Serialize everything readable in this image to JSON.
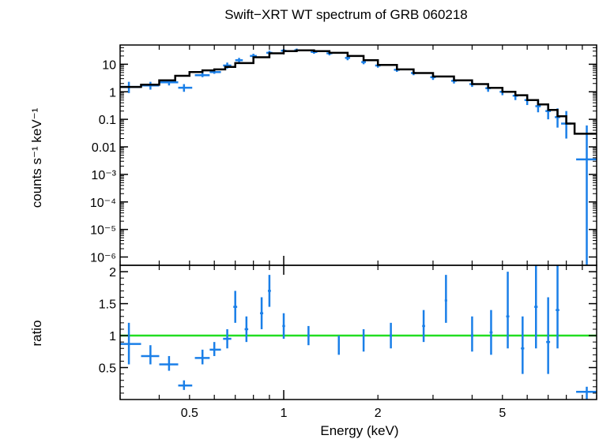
{
  "chart_data": [
    {
      "panel": "spectrum",
      "type": "scatter",
      "title": "Swift−XRT WT spectrum of GRB 060218",
      "xlabel": "Energy (keV)",
      "ylabel": "counts s⁻¹ keV⁻¹",
      "xscale": "log",
      "yscale": "log",
      "xlim": [
        0.3,
        10
      ],
      "ylim": [
        5e-07,
        50
      ],
      "y_tick_labels": [
        {
          "value": 10,
          "label": "10"
        },
        {
          "value": 1,
          "label": "1"
        },
        {
          "value": 0.1,
          "label": "0.1"
        },
        {
          "value": 0.01,
          "label": "0.01"
        },
        {
          "value": 0.001,
          "label": "10⁻³"
        },
        {
          "value": 0.0001,
          "label": "10⁻⁴"
        },
        {
          "value": 1e-05,
          "label": "10⁻⁵"
        },
        {
          "value": 1e-06,
          "label": "10⁻⁶"
        }
      ],
      "data_color": "#1a7fe8",
      "model_color": "#000000",
      "model": {
        "name": "model",
        "step_edges": [
          0.3,
          0.35,
          0.4,
          0.45,
          0.5,
          0.55,
          0.6,
          0.65,
          0.7,
          0.8,
          0.9,
          1.0,
          1.1,
          1.25,
          1.4,
          1.6,
          1.8,
          2.0,
          2.3,
          2.6,
          3.0,
          3.5,
          4.0,
          4.5,
          5.0,
          5.5,
          6.0,
          6.5,
          7.0,
          7.5,
          8.0,
          8.5,
          10
        ],
        "values": [
          1.5,
          1.8,
          2.6,
          3.8,
          5.2,
          6.0,
          6.5,
          8.0,
          11,
          18,
          25,
          30,
          32,
          30,
          26,
          20,
          14,
          9.5,
          6.5,
          4.8,
          3.6,
          2.6,
          1.9,
          1.4,
          1.0,
          0.75,
          0.5,
          0.35,
          0.22,
          0.13,
          0.07,
          0.03
        ]
      },
      "series": [
        {
          "name": "data",
          "points": [
            {
              "x": 0.32,
              "y": 1.5,
              "xlo": 0.3,
              "xhi": 0.35,
              "ylo": 0.9,
              "yhi": 2.3
            },
            {
              "x": 0.375,
              "y": 1.7,
              "xlo": 0.35,
              "xhi": 0.4,
              "ylo": 1.2,
              "yhi": 2.3
            },
            {
              "x": 0.43,
              "y": 2.2,
              "xlo": 0.4,
              "xhi": 0.46,
              "ylo": 1.7,
              "yhi": 2.8
            },
            {
              "x": 0.48,
              "y": 1.4,
              "xlo": 0.46,
              "xhi": 0.51,
              "ylo": 1.0,
              "yhi": 1.9
            },
            {
              "x": 0.55,
              "y": 4.0,
              "xlo": 0.52,
              "xhi": 0.58,
              "ylo": 3.4,
              "yhi": 4.8
            },
            {
              "x": 0.6,
              "y": 5.2,
              "xlo": 0.58,
              "xhi": 0.63,
              "ylo": 4.5,
              "yhi": 6.0
            },
            {
              "x": 0.66,
              "y": 9.0,
              "xlo": 0.64,
              "xhi": 0.68,
              "ylo": 7.0,
              "yhi": 11.5
            },
            {
              "x": 0.72,
              "y": 14,
              "xlo": 0.7,
              "xhi": 0.74,
              "ylo": 11,
              "yhi": 17
            },
            {
              "x": 0.8,
              "y": 20,
              "xlo": 0.78,
              "xhi": 0.82,
              "ylo": 16,
              "yhi": 24
            },
            {
              "x": 0.9,
              "y": 26,
              "xlo": 0.88,
              "xhi": 0.92,
              "ylo": 22,
              "yhi": 31
            },
            {
              "x": 1.0,
              "y": 31,
              "xlo": 0.98,
              "xhi": 1.02,
              "ylo": 27,
              "yhi": 36
            },
            {
              "x": 1.1,
              "y": 32,
              "xlo": 1.08,
              "xhi": 1.12,
              "ylo": 28,
              "yhi": 37
            },
            {
              "x": 1.25,
              "y": 28,
              "xlo": 1.22,
              "xhi": 1.28,
              "ylo": 24,
              "yhi": 33
            },
            {
              "x": 1.4,
              "y": 25,
              "xlo": 1.37,
              "xhi": 1.43,
              "ylo": 21,
              "yhi": 29
            },
            {
              "x": 1.6,
              "y": 17,
              "xlo": 1.57,
              "xhi": 1.63,
              "ylo": 14,
              "yhi": 20
            },
            {
              "x": 1.8,
              "y": 12,
              "xlo": 1.77,
              "xhi": 1.83,
              "ylo": 10,
              "yhi": 14
            },
            {
              "x": 2.0,
              "y": 9.0,
              "xlo": 1.96,
              "xhi": 2.04,
              "ylo": 7.5,
              "yhi": 11
            },
            {
              "x": 2.3,
              "y": 6.3,
              "xlo": 2.25,
              "xhi": 2.35,
              "ylo": 5.3,
              "yhi": 7.5
            },
            {
              "x": 2.6,
              "y": 4.8,
              "xlo": 2.55,
              "xhi": 2.65,
              "ylo": 4.0,
              "yhi": 5.8
            },
            {
              "x": 3.0,
              "y": 3.4,
              "xlo": 2.94,
              "xhi": 3.06,
              "ylo": 2.7,
              "yhi": 4.2
            },
            {
              "x": 3.5,
              "y": 2.5,
              "xlo": 3.43,
              "xhi": 3.57,
              "ylo": 2.0,
              "yhi": 3.2
            },
            {
              "x": 4.0,
              "y": 1.9,
              "xlo": 3.92,
              "xhi": 4.08,
              "ylo": 1.5,
              "yhi": 2.4
            },
            {
              "x": 4.5,
              "y": 1.35,
              "xlo": 4.41,
              "xhi": 4.59,
              "ylo": 1.0,
              "yhi": 1.8
            },
            {
              "x": 5.0,
              "y": 1.0,
              "xlo": 4.9,
              "xhi": 5.1,
              "ylo": 0.75,
              "yhi": 1.35
            },
            {
              "x": 5.5,
              "y": 0.72,
              "xlo": 5.39,
              "xhi": 5.61,
              "ylo": 0.5,
              "yhi": 1.0
            },
            {
              "x": 6.0,
              "y": 0.5,
              "xlo": 5.88,
              "xhi": 6.12,
              "ylo": 0.33,
              "yhi": 0.75
            },
            {
              "x": 6.5,
              "y": 0.3,
              "xlo": 6.37,
              "xhi": 6.63,
              "ylo": 0.18,
              "yhi": 0.5
            },
            {
              "x": 7.0,
              "y": 0.2,
              "xlo": 6.86,
              "xhi": 7.14,
              "ylo": 0.1,
              "yhi": 0.35
            },
            {
              "x": 7.5,
              "y": 0.12,
              "xlo": 7.35,
              "xhi": 7.65,
              "ylo": 0.05,
              "yhi": 0.25
            },
            {
              "x": 8.0,
              "y": 0.07,
              "xlo": 7.7,
              "xhi": 8.3,
              "ylo": 0.02,
              "yhi": 0.2
            },
            {
              "x": 9.3,
              "y": 0.0035,
              "xlo": 8.6,
              "xhi": 10,
              "ylo": 5e-07,
              "yhi": 0.06
            }
          ]
        }
      ]
    },
    {
      "panel": "ratio",
      "type": "scatter",
      "xlabel": "Energy (keV)",
      "ylabel": "ratio",
      "xscale": "log",
      "xlim": [
        0.3,
        10
      ],
      "ylim": [
        0,
        2.1
      ],
      "x_tick_labels": [
        {
          "value": 0.5,
          "label": "0.5"
        },
        {
          "value": 1,
          "label": "1"
        },
        {
          "value": 2,
          "label": "2"
        },
        {
          "value": 5,
          "label": "5"
        }
      ],
      "y_tick_labels": [
        {
          "value": 0.5,
          "label": "0.5"
        },
        {
          "value": 1,
          "label": "1"
        },
        {
          "value": 1.5,
          "label": "1.5"
        },
        {
          "value": 2,
          "label": "2"
        }
      ],
      "reference_line": {
        "y": 1,
        "color": "#22dd22"
      },
      "series": [
        {
          "name": "ratio",
          "points": [
            {
              "x": 0.32,
              "y": 0.87,
              "xlo": 0.3,
              "xhi": 0.35,
              "ylo": 0.55,
              "yhi": 1.2
            },
            {
              "x": 0.375,
              "y": 0.68,
              "xlo": 0.35,
              "xhi": 0.4,
              "ylo": 0.55,
              "yhi": 0.85
            },
            {
              "x": 0.43,
              "y": 0.55,
              "xlo": 0.4,
              "xhi": 0.46,
              "ylo": 0.45,
              "yhi": 0.68
            },
            {
              "x": 0.48,
              "y": 0.22,
              "xlo": 0.46,
              "xhi": 0.51,
              "ylo": 0.15,
              "yhi": 0.3
            },
            {
              "x": 0.55,
              "y": 0.65,
              "xlo": 0.52,
              "xhi": 0.58,
              "ylo": 0.55,
              "yhi": 0.78
            },
            {
              "x": 0.6,
              "y": 0.78,
              "xlo": 0.58,
              "xhi": 0.63,
              "ylo": 0.68,
              "yhi": 0.9
            },
            {
              "x": 0.66,
              "y": 0.95,
              "xlo": 0.64,
              "xhi": 0.68,
              "ylo": 0.8,
              "yhi": 1.1
            },
            {
              "x": 0.7,
              "y": 1.45,
              "xlo": 0.69,
              "xhi": 0.71,
              "ylo": 1.2,
              "yhi": 1.7
            },
            {
              "x": 0.76,
              "y": 1.1,
              "xlo": 0.75,
              "xhi": 0.77,
              "ylo": 0.9,
              "yhi": 1.3
            },
            {
              "x": 0.85,
              "y": 1.35,
              "xlo": 0.84,
              "xhi": 0.86,
              "ylo": 1.1,
              "yhi": 1.6
            },
            {
              "x": 0.9,
              "y": 1.7,
              "xlo": 0.89,
              "xhi": 0.91,
              "ylo": 1.45,
              "yhi": 1.95
            },
            {
              "x": 1.0,
              "y": 1.15,
              "xlo": 0.99,
              "xhi": 1.01,
              "ylo": 0.95,
              "yhi": 1.35
            },
            {
              "x": 1.2,
              "y": 1.0,
              "xlo": 1.19,
              "xhi": 1.21,
              "ylo": 0.85,
              "yhi": 1.15
            },
            {
              "x": 1.5,
              "y": 0.85,
              "xlo": 1.49,
              "xhi": 1.51,
              "ylo": 0.7,
              "yhi": 1.0
            },
            {
              "x": 1.8,
              "y": 0.92,
              "xlo": 1.79,
              "xhi": 1.81,
              "ylo": 0.75,
              "yhi": 1.1
            },
            {
              "x": 2.2,
              "y": 1.0,
              "xlo": 2.18,
              "xhi": 2.22,
              "ylo": 0.8,
              "yhi": 1.2
            },
            {
              "x": 2.8,
              "y": 1.15,
              "xlo": 2.77,
              "xhi": 2.83,
              "ylo": 0.9,
              "yhi": 1.4
            },
            {
              "x": 3.3,
              "y": 1.55,
              "xlo": 3.27,
              "xhi": 3.33,
              "ylo": 1.2,
              "yhi": 1.95
            },
            {
              "x": 4.0,
              "y": 1.0,
              "xlo": 3.96,
              "xhi": 4.04,
              "ylo": 0.75,
              "yhi": 1.3
            },
            {
              "x": 4.6,
              "y": 1.05,
              "xlo": 4.55,
              "xhi": 4.65,
              "ylo": 0.7,
              "yhi": 1.4
            },
            {
              "x": 5.2,
              "y": 1.3,
              "xlo": 5.14,
              "xhi": 5.26,
              "ylo": 0.8,
              "yhi": 2.0
            },
            {
              "x": 5.8,
              "y": 0.8,
              "xlo": 5.73,
              "xhi": 5.87,
              "ylo": 0.4,
              "yhi": 1.3
            },
            {
              "x": 6.4,
              "y": 1.45,
              "xlo": 6.32,
              "xhi": 6.48,
              "ylo": 0.8,
              "yhi": 2.1
            },
            {
              "x": 7.0,
              "y": 0.9,
              "xlo": 6.9,
              "xhi": 7.1,
              "ylo": 0.4,
              "yhi": 1.6
            },
            {
              "x": 7.5,
              "y": 1.4,
              "xlo": 7.4,
              "xhi": 7.6,
              "ylo": 0.8,
              "yhi": 2.1
            },
            {
              "x": 9.3,
              "y": 0.12,
              "xlo": 8.6,
              "xhi": 10,
              "ylo": 0.0,
              "yhi": 0.2
            }
          ]
        }
      ]
    }
  ]
}
